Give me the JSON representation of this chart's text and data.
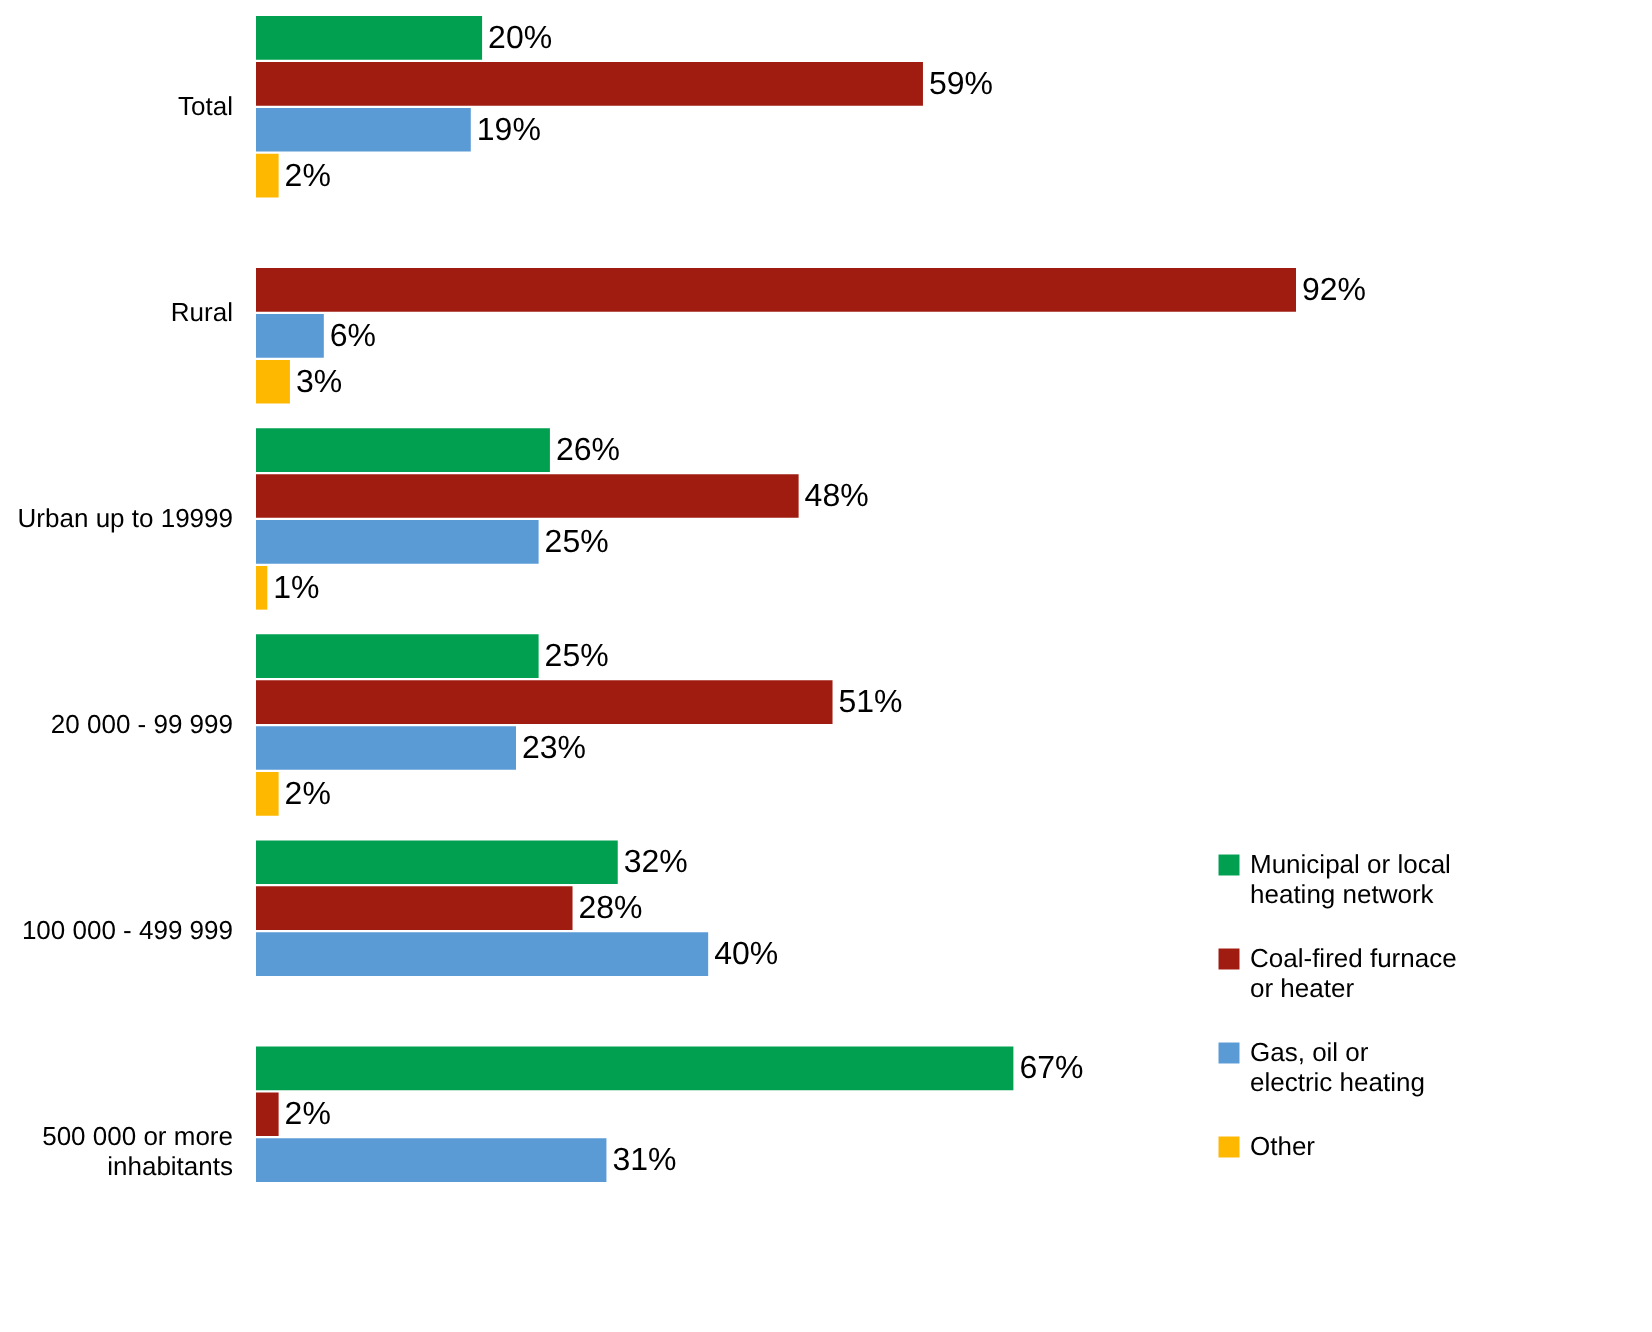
{
  "chart_data": {
    "type": "bar",
    "orientation": "horizontal",
    "categories": [
      "Total",
      "Rural",
      "Urban up to 19999",
      "20 000 - 99 999",
      "100 000 - 499 999",
      "500 000 or more inhabitants"
    ],
    "series": [
      {
        "name": "Municipal or local heating network",
        "color": "#00a050",
        "values": [
          20,
          null,
          26,
          25,
          32,
          67
        ],
        "value_labels": [
          "20%",
          null,
          "26%",
          "25%",
          "32%",
          "67%"
        ]
      },
      {
        "name": "Coal-fired furnace or heater",
        "color": "#a01c10",
        "values": [
          59,
          92,
          48,
          51,
          28,
          2
        ],
        "value_labels": [
          "59%",
          "92%",
          "48%",
          "51%",
          "28%",
          "2%"
        ]
      },
      {
        "name": "Gas, oil or electric heating",
        "color": "#5b9bd5",
        "values": [
          19,
          6,
          25,
          23,
          40,
          31
        ],
        "value_labels": [
          "19%",
          "6%",
          "25%",
          "23%",
          "40%",
          "31%"
        ]
      },
      {
        "name": "Other",
        "color": "#ffb800",
        "values": [
          2,
          3,
          1,
          2,
          null,
          null
        ],
        "value_labels": [
          "2%",
          "3%",
          "1%",
          "2%",
          null,
          null
        ]
      }
    ],
    "legend": "bottom right"
  }
}
